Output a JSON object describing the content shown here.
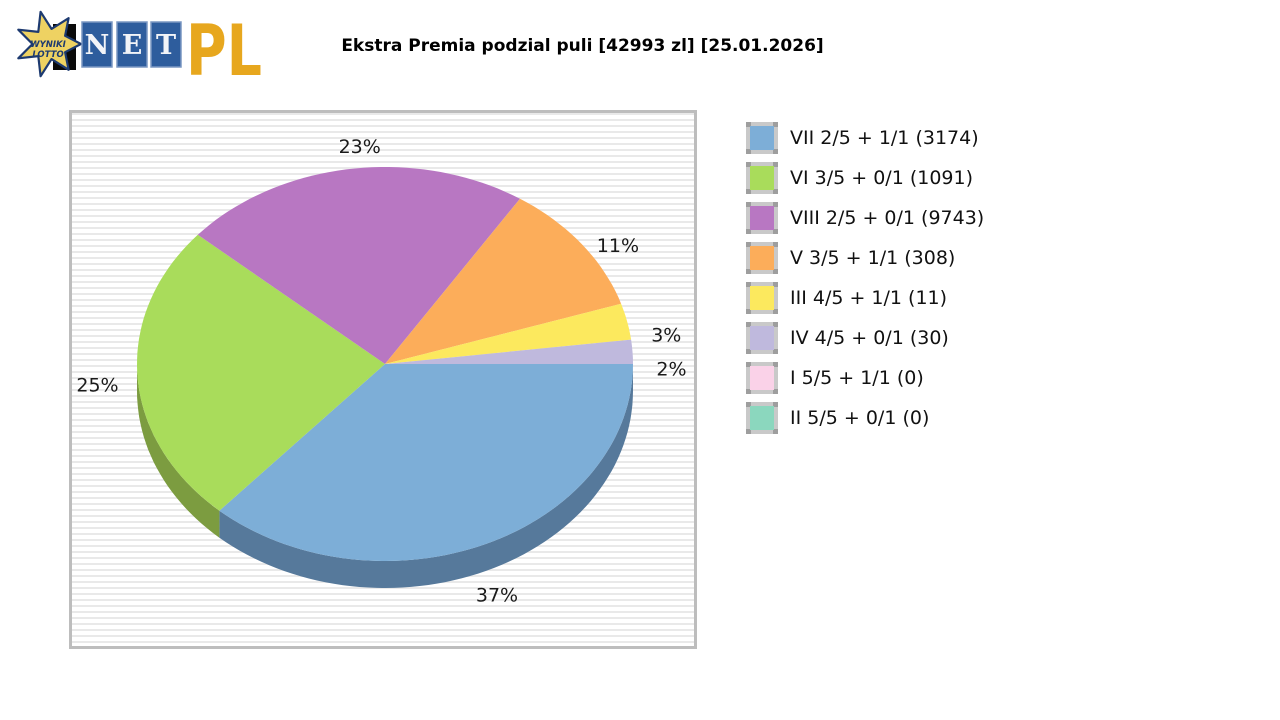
{
  "logo": {
    "star_line1": "WYNIKI",
    "star_line2": "LOTTO",
    "net_letters": [
      "N",
      "E",
      "T"
    ],
    "suffix": "PL",
    "colors": {
      "star_fill": "#eed262",
      "star_stroke": "#1d3a70",
      "tile_blue": "#2e5d9d",
      "suffix_gold": "#e7a71e"
    }
  },
  "title": "Ekstra Premia podzial puli [42993 zl] [25.01.2026]",
  "chart_data": {
    "type": "pie",
    "style": "3d",
    "title": "Ekstra Premia podzial puli [42993 zl] [25.01.2026]",
    "legend_position": "right",
    "start_angle_deg": 0,
    "direction": "clockwise",
    "percent_labels_visible": [
      "37%",
      "25%",
      "23%",
      "11%",
      "3%",
      "2%"
    ],
    "slices": [
      {
        "label": "VII 2/5 + 1/1 (3174)",
        "pct": 37,
        "color": "#7daed7",
        "side_color": "#56799b"
      },
      {
        "label": "VI 3/5 + 0/1 (1091)",
        "pct": 25,
        "color": "#a9dc5b",
        "side_color": "#7c9c40"
      },
      {
        "label": "VIII 2/5 + 0/1 (9743)",
        "pct": 23,
        "color": "#b877c2",
        "side_color": "#8a5492"
      },
      {
        "label": "V 3/5 + 1/1 (308)",
        "pct": 11,
        "color": "#fcad5a",
        "side_color": "#c07f36"
      },
      {
        "label": "III 4/5 + 1/1 (11)",
        "pct": 3,
        "color": "#fce95e",
        "side_color": "#c0ae38"
      },
      {
        "label": "IV 4/5 + 0/1 (30)",
        "pct": 2,
        "color": "#bfb9dd",
        "side_color": "#8e88ac"
      },
      {
        "label": "I 5/5 + 1/1 (0)",
        "pct": 0,
        "color": "#fad2e8",
        "side_color": "#c8a0b6"
      },
      {
        "label": "II 5/5 + 0/1 (0)",
        "pct": 0,
        "color": "#8bd7be",
        "side_color": "#5fa58e"
      }
    ]
  }
}
